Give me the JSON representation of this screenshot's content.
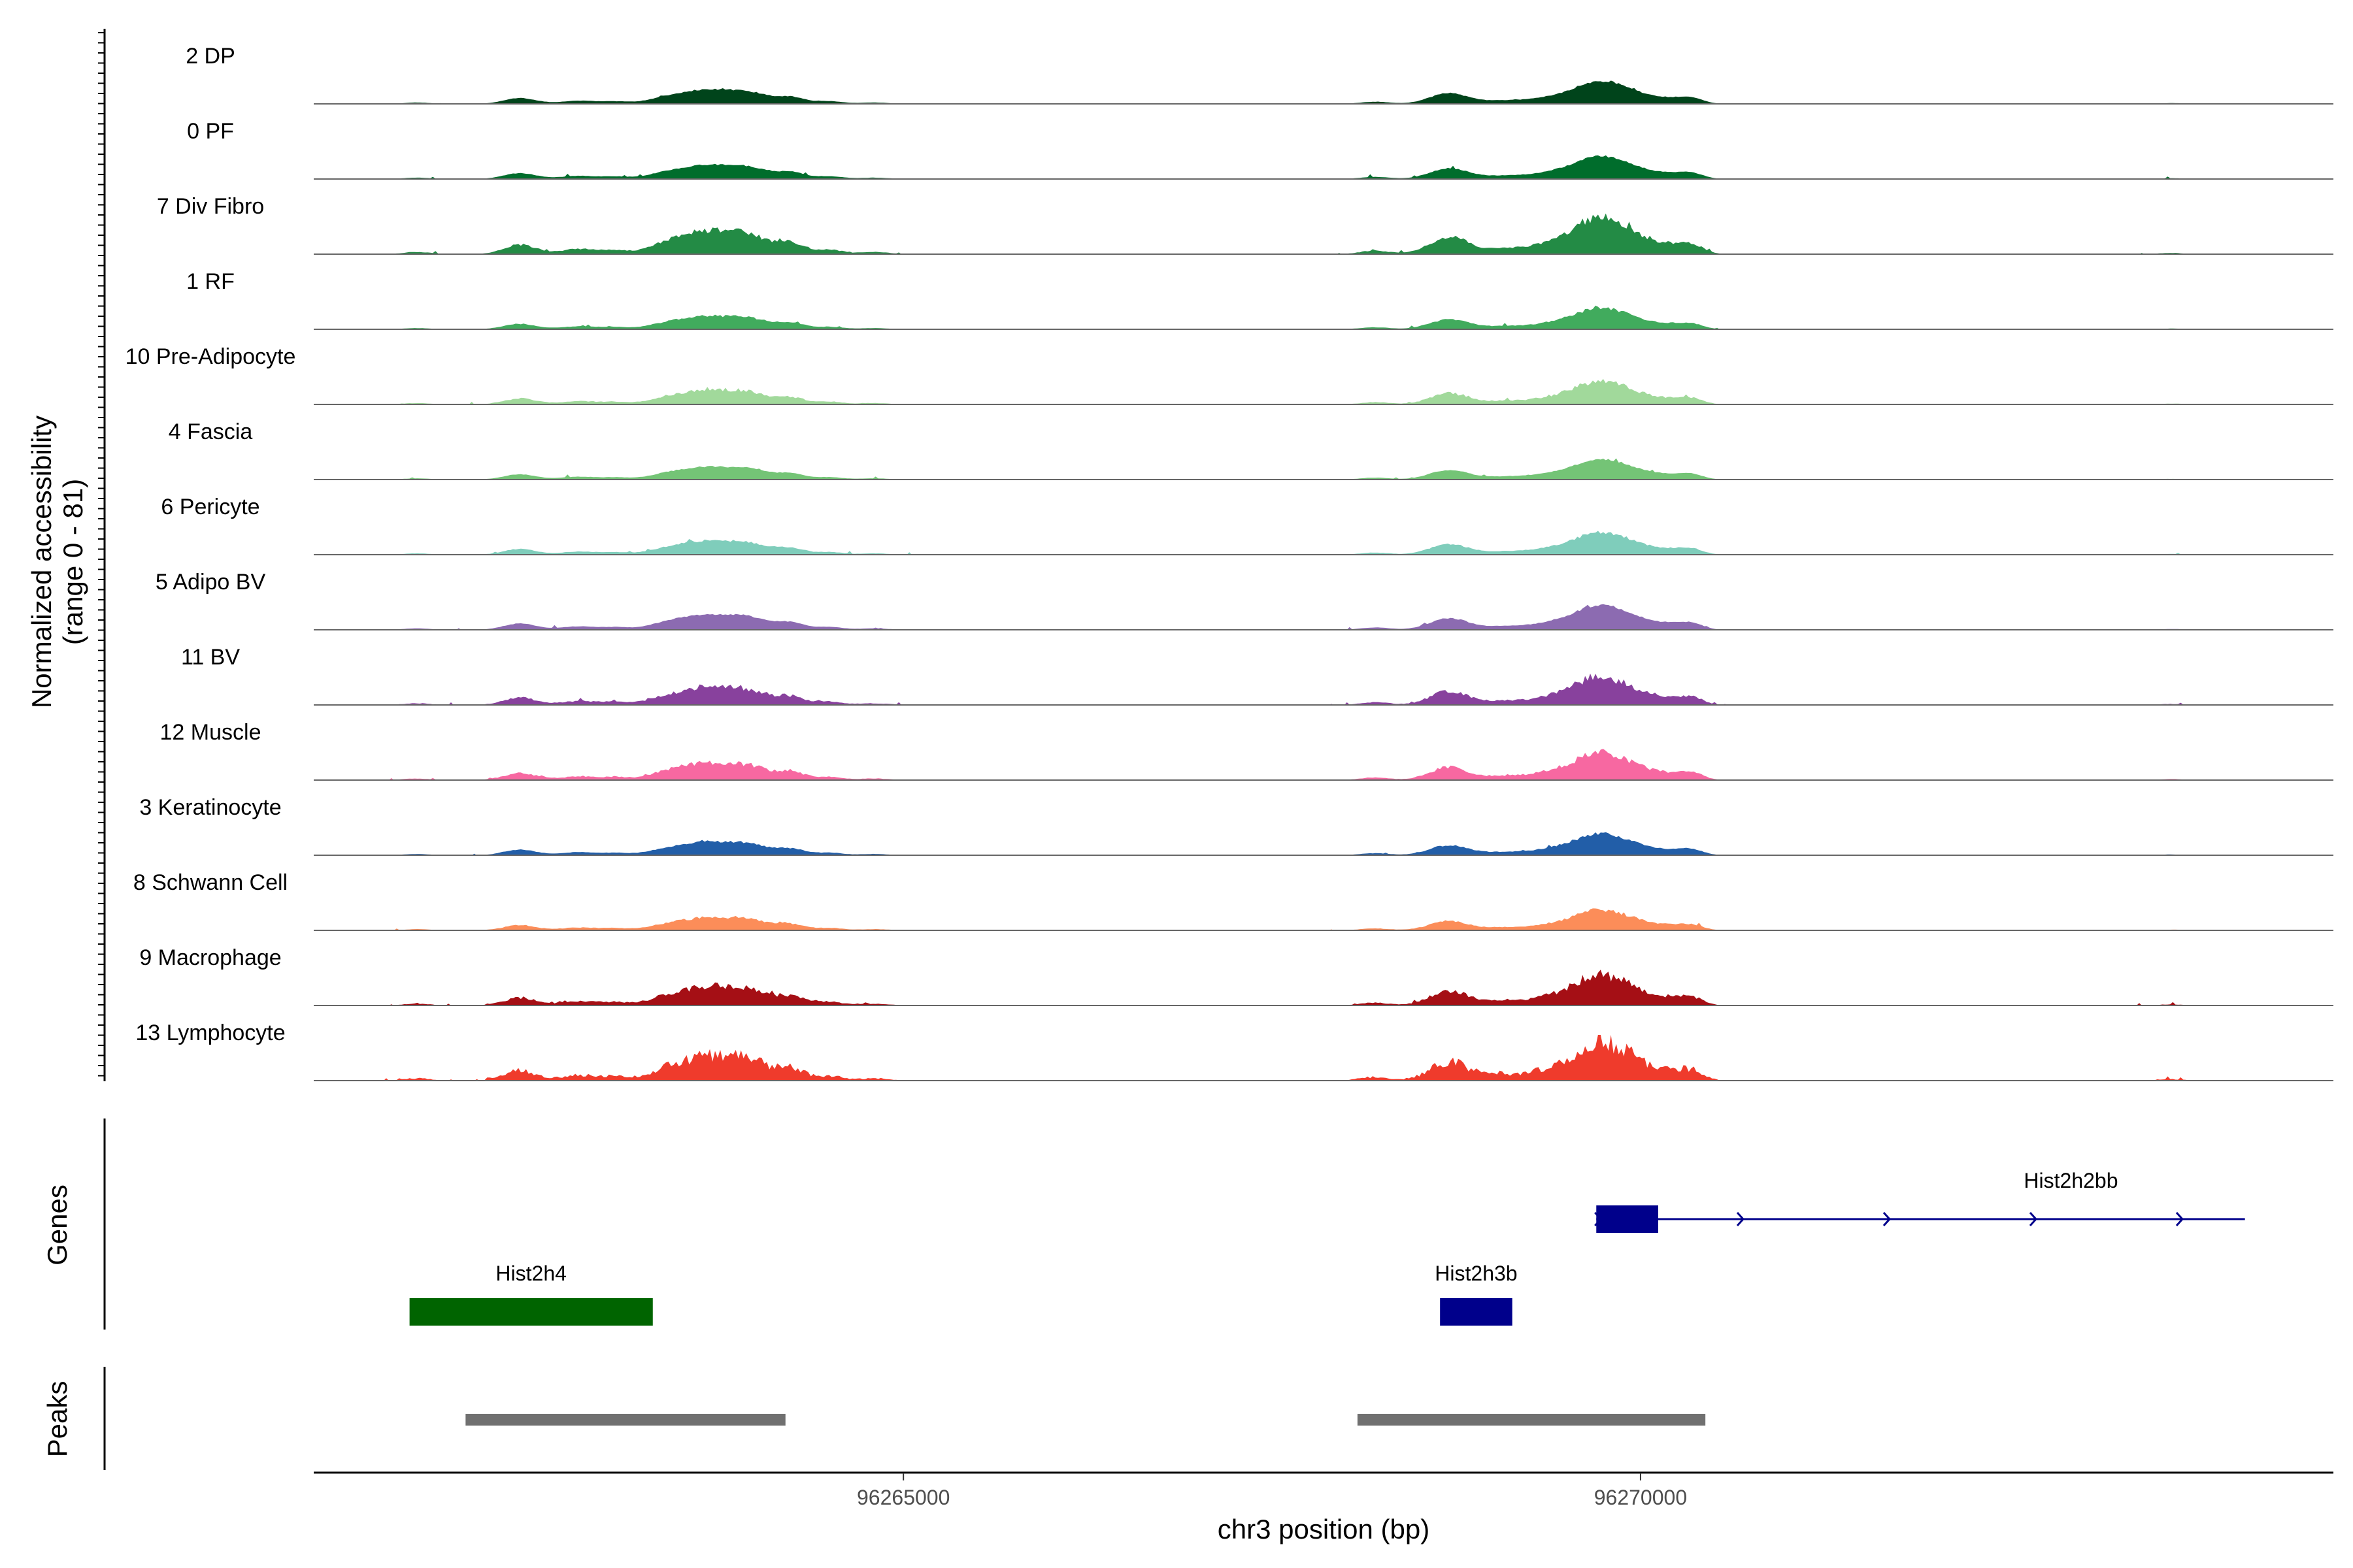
{
  "chart_data": {
    "type": "area",
    "title": "",
    "xlabel": "chr3 position (bp)",
    "ylabel_line1": "Normalized accessibility",
    "ylabel_line2": "(range 0 - 81)",
    "y_range": [
      0,
      81
    ],
    "x_range": [
      96261000,
      96274700
    ],
    "x_ticks": [
      {
        "value": 96265000,
        "label": "96265000"
      },
      {
        "value": 96270000,
        "label": "96270000"
      }
    ],
    "tracks": [
      {
        "name": "2 DP",
        "color": "#00441b",
        "scale": 0.58,
        "noise": 0.05
      },
      {
        "name": "0 PF",
        "color": "#006d2c",
        "scale": 0.58,
        "noise": 0.05
      },
      {
        "name": "7 Div Fibro",
        "color": "#238b45",
        "scale": 0.95,
        "noise": 0.12
      },
      {
        "name": "1 RF",
        "color": "#41ab5d",
        "scale": 0.54,
        "noise": 0.08
      },
      {
        "name": "10 Pre-Adipocyte",
        "color": "#a1d99b",
        "scale": 0.6,
        "noise": 0.12
      },
      {
        "name": "4 Fascia",
        "color": "#74c476",
        "scale": 0.52,
        "noise": 0.05
      },
      {
        "name": "6 Pericyte",
        "color": "#7fcdbb",
        "scale": 0.57,
        "noise": 0.07
      },
      {
        "name": "5 Adipo BV",
        "color": "#8c6bb1",
        "scale": 0.63,
        "noise": 0.05
      },
      {
        "name": "11 BV",
        "color": "#88419d",
        "scale": 0.72,
        "noise": 0.16
      },
      {
        "name": "12 Muscle",
        "color": "#f768a1",
        "scale": 0.7,
        "noise": 0.14
      },
      {
        "name": "3 Keratinocyte",
        "color": "#225ea8",
        "scale": 0.55,
        "noise": 0.08
      },
      {
        "name": "8 Schwann Cell",
        "color": "#fc8d59",
        "scale": 0.52,
        "noise": 0.1
      },
      {
        "name": "9 Macrophage",
        "color": "#a50f15",
        "scale": 0.78,
        "noise": 0.17
      },
      {
        "name": "13 Lymphocyte",
        "color": "#ef3b2c",
        "scale": 1.0,
        "noise": 0.28
      }
    ],
    "peak_profile": [
      {
        "center": 96261700,
        "width": 90,
        "height": 0.05
      },
      {
        "center": 96262400,
        "width": 110,
        "height": 0.22
      },
      {
        "center": 96262800,
        "width": 120,
        "height": 0.12
      },
      {
        "center": 96263050,
        "width": 90,
        "height": 0.08
      },
      {
        "center": 96263450,
        "width": 150,
        "height": 0.32
      },
      {
        "center": 96263650,
        "width": 110,
        "height": 0.22
      },
      {
        "center": 96263900,
        "width": 180,
        "height": 0.5
      },
      {
        "center": 96264250,
        "width": 90,
        "height": 0.2
      },
      {
        "center": 96264500,
        "width": 90,
        "height": 0.1
      },
      {
        "center": 96264800,
        "width": 100,
        "height": 0.05
      },
      {
        "center": 96268200,
        "width": 100,
        "height": 0.08
      },
      {
        "center": 96268700,
        "width": 130,
        "height": 0.4
      },
      {
        "center": 96269100,
        "width": 160,
        "height": 0.13
      },
      {
        "center": 96269400,
        "width": 130,
        "height": 0.18
      },
      {
        "center": 96269700,
        "width": 160,
        "height": 0.78
      },
      {
        "center": 96269950,
        "width": 140,
        "height": 0.32
      },
      {
        "center": 96270200,
        "width": 100,
        "height": 0.16
      },
      {
        "center": 96270350,
        "width": 80,
        "height": 0.2
      },
      {
        "center": 96273600,
        "width": 80,
        "height": 0.03
      }
    ],
    "genes": [
      {
        "name": "Hist2h2bb",
        "start": 96269700,
        "end": 96274100,
        "exon_start": 96269700,
        "exon_end": 96270120,
        "strand": "+",
        "color": "#00008b",
        "row": 1
      },
      {
        "name": "Hist2h4",
        "start": 96261650,
        "end": 96263300,
        "exon_start": 96261650,
        "exon_end": 96263300,
        "strand": "+",
        "color": "#006400",
        "row": 2
      },
      {
        "name": "Hist2h3b",
        "start": 96268640,
        "end": 96269130,
        "exon_start": 96268640,
        "exon_end": 96269130,
        "strand": "+",
        "color": "#00008b",
        "row": 2
      }
    ],
    "peaks": [
      {
        "start": 96262030,
        "end": 96264200,
        "color": "#707070"
      },
      {
        "start": 96268080,
        "end": 96270440,
        "color": "#707070"
      }
    ],
    "panel_titles": {
      "genes": "Genes",
      "peaks": "Peaks"
    }
  }
}
